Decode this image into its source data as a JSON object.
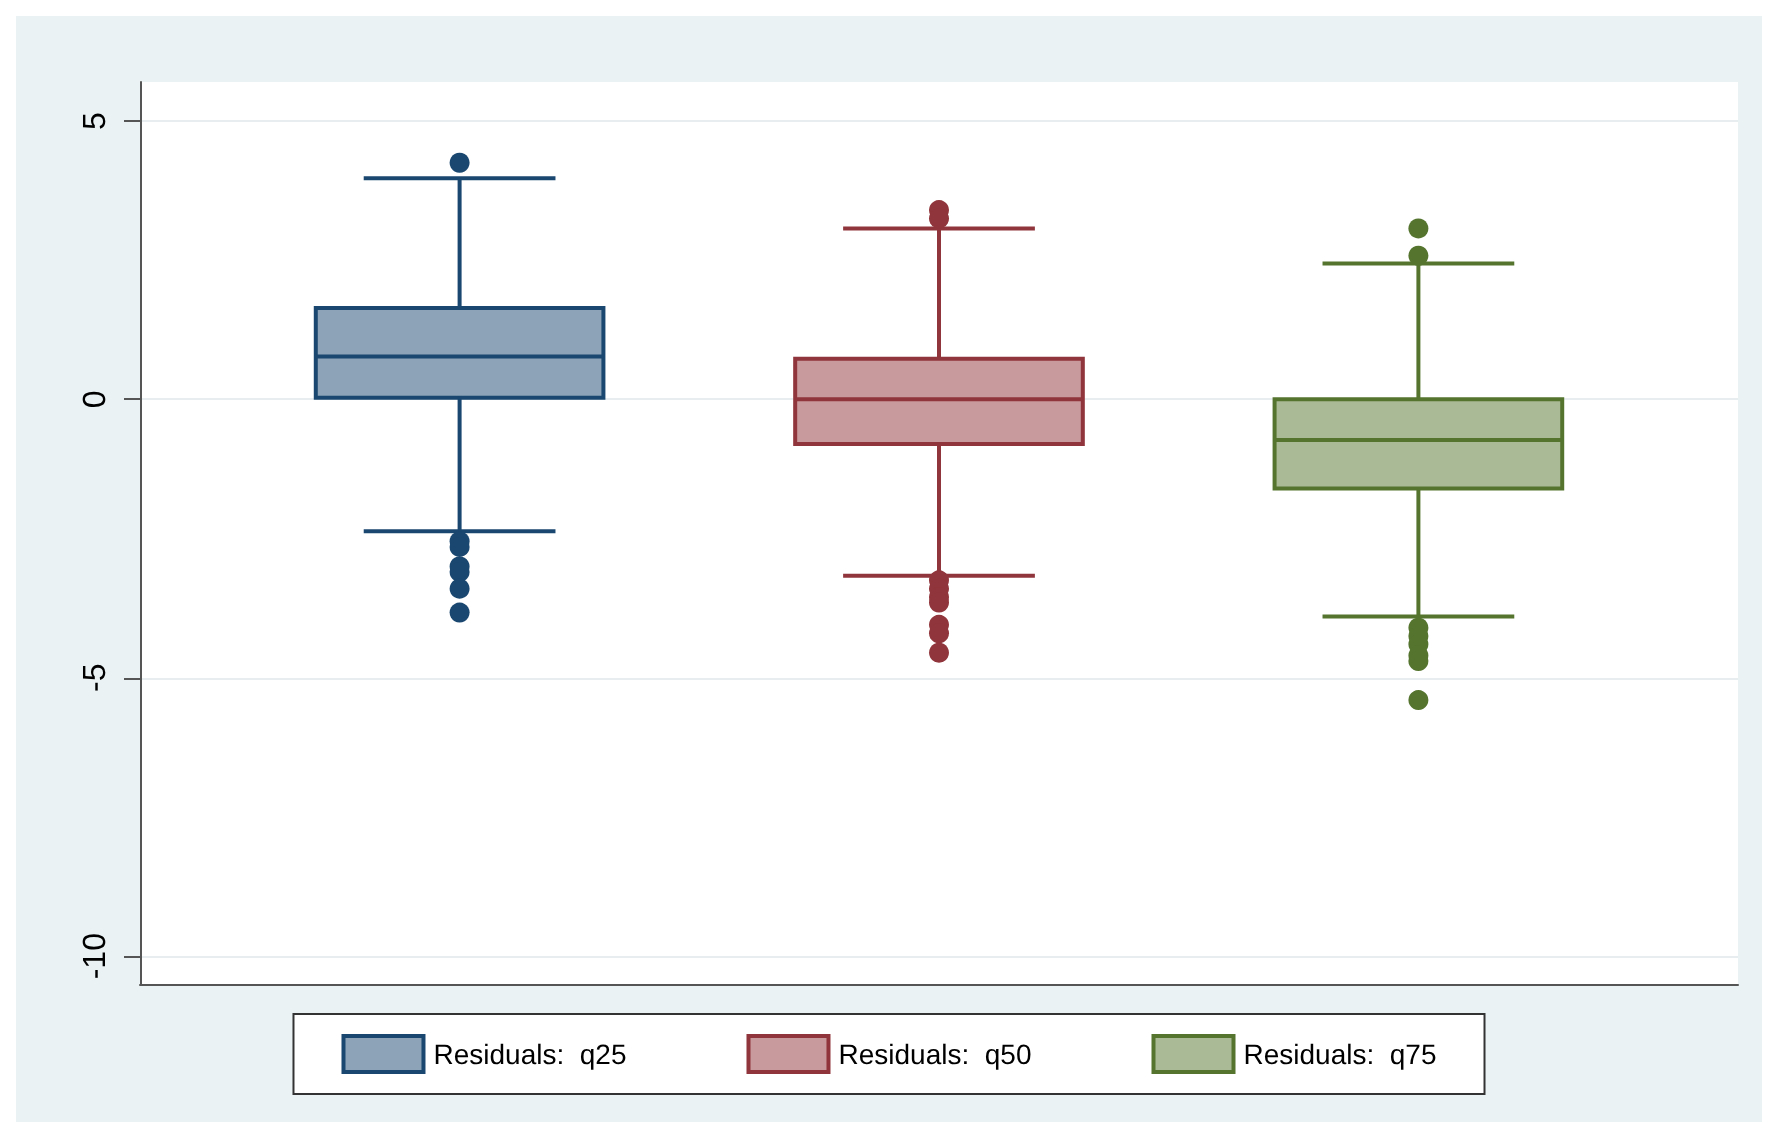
{
  "chart_data": {
    "type": "box",
    "categories": [
      null
    ],
    "ylim": [
      -10.5,
      5.7
    ],
    "yticks": [
      5,
      0,
      -5,
      -10
    ],
    "grid": "y",
    "legend": "bottom",
    "tick_labels": "y",
    "series": [
      {
        "name": "Residuals:  q25",
        "color": "#1a476f",
        "boxes": [
          {
            "low": -2.37,
            "q1": 0.03,
            "median": 0.77,
            "q3": 1.64,
            "high": 3.97,
            "outliers": [
              4.25,
              -2.55,
              -2.65,
              -3.0,
              -3.1,
              -3.4,
              -3.83
            ]
          }
        ]
      },
      {
        "name": "Residuals:  q50",
        "color": "#90353b",
        "boxes": [
          {
            "low": -3.17,
            "q1": -0.8,
            "median": 0,
            "q3": 0.73,
            "high": 3.07,
            "outliers": [
              3.4,
              3.25,
              -3.25,
              -3.4,
              -3.55,
              -3.65,
              -4.05,
              -4.2,
              -4.55
            ]
          }
        ]
      },
      {
        "name": "Residuals:  q75",
        "color": "#55752f",
        "boxes": [
          {
            "low": -3.9,
            "q1": -1.6,
            "median": -0.73,
            "q3": 0.0,
            "high": 2.44,
            "outliers": [
              3.07,
              2.58,
              -4.1,
              -4.25,
              -4.4,
              -4.6,
              -4.7,
              -5.4
            ]
          }
        ]
      }
    ]
  }
}
